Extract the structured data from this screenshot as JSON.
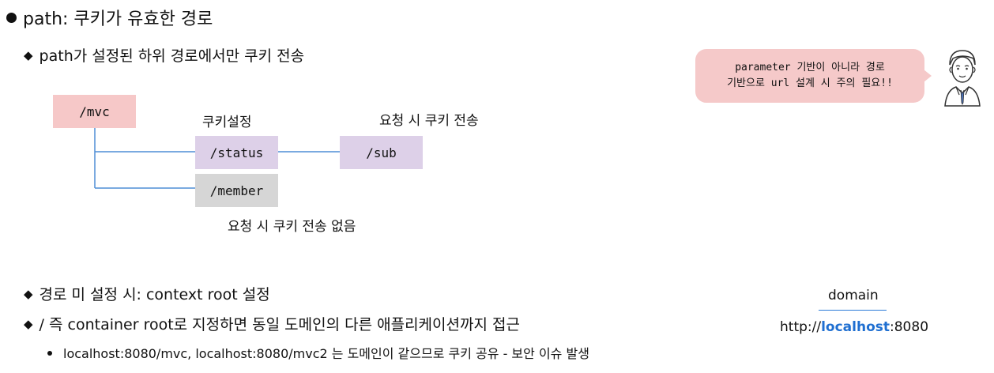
{
  "heading": {
    "text": "path: 쿠키가 유효한 경로"
  },
  "subpoint1": {
    "text": "path가 설정된 하위 경로에서만 쿠키 전송"
  },
  "diagram": {
    "mvc": "/mvc",
    "status": "/status",
    "sub": "/sub",
    "member": "/member",
    "label_cookie_set": "쿠키설정",
    "label_send": "요청 시 쿠키 전송",
    "label_no_send": "요청 시 쿠키 전송 없음",
    "line_color": "#4f8ed6"
  },
  "note": {
    "line1": "parameter 기반이 아니라 경로",
    "line2": "기반으로 url 설계 시 주의 필요!!"
  },
  "subpoint2": {
    "text": "경로 미 설정 시: context root 설정"
  },
  "subpoint3": {
    "text": "/ 즉 container root로 지정하면 동일 도메인의 다른 애플리케이션까지 접근"
  },
  "detail": {
    "text": "localhost:8080/mvc, localhost:8080/mvc2 는 도메인이 같으므로 쿠키 공유 - 보안 이슈 발생"
  },
  "domain_example": {
    "label": "domain",
    "url_prefix": "http://",
    "url_host": "localhost",
    "url_suffix": ":8080",
    "host_color": "#1f6fd1"
  }
}
